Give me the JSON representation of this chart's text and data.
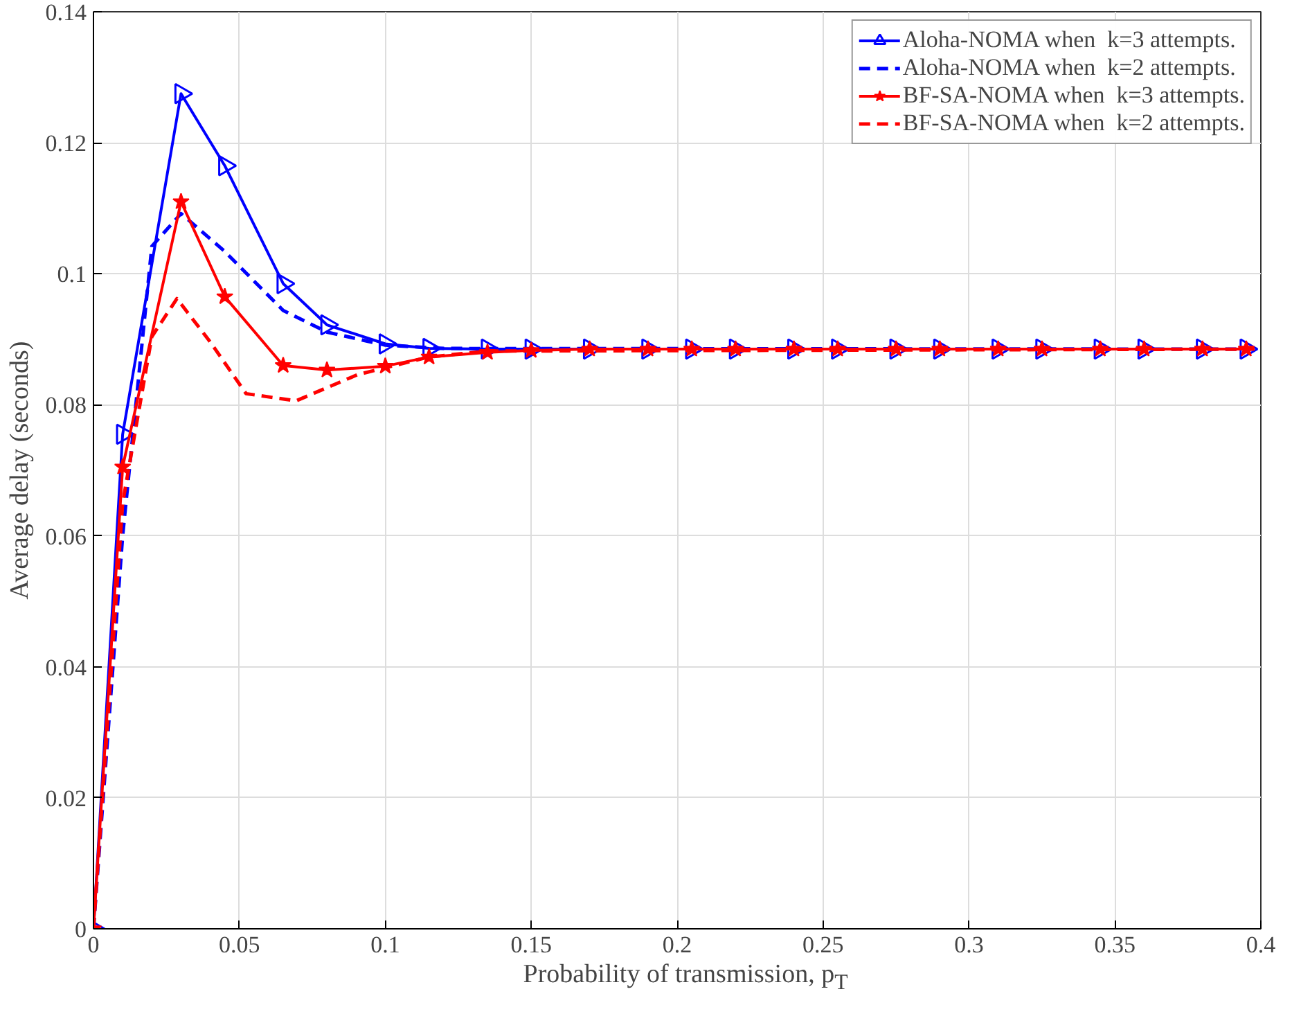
{
  "chart_data": {
    "type": "line",
    "xlabel": "Probability of transmission, p$_{T}$",
    "ylabel": "Average delay (seconds)",
    "xlim": [
      0,
      0.4
    ],
    "xticks": [
      0,
      0.05,
      0.1,
      0.15,
      0.2,
      0.25,
      0.3,
      0.35,
      0.4
    ],
    "ylim": [
      0,
      0.14
    ],
    "yticks": [
      0,
      0.02,
      0.04,
      0.06,
      0.08,
      0.1,
      0.12,
      0.14
    ],
    "grid": true,
    "legend": "top right",
    "series": [
      {
        "name": "Aloha-NOMA when  k=3 attempts.",
        "color": "#0000ff",
        "marker": "triangle",
        "line_style": "solid",
        "x": [
          0,
          0.01,
          0.03,
          0.045,
          0.065,
          0.08,
          0.1,
          0.115,
          0.135,
          0.15,
          0.17,
          0.19,
          0.205,
          0.22,
          0.24,
          0.255,
          0.275,
          0.29,
          0.31,
          0.325,
          0.345,
          0.36,
          0.38,
          0.395
        ],
        "values": [
          0,
          0.0755,
          0.1275,
          0.1165,
          0.0985,
          0.0922,
          0.0893,
          0.0886,
          0.0885,
          0.0885,
          0.0885,
          0.0885,
          0.0885,
          0.0885,
          0.0885,
          0.0885,
          0.0885,
          0.0885,
          0.0885,
          0.0885,
          0.0885,
          0.0885,
          0.0885,
          0.0885
        ]
      },
      {
        "name": "Aloha-NOMA when  k=2 attempts.",
        "color": "#0000ff",
        "marker": "none",
        "line_style": "dashed",
        "x": [
          0,
          0.01,
          0.02,
          0.03,
          0.045,
          0.065,
          0.08,
          0.1,
          0.12,
          0.4
        ],
        "values": [
          0,
          0.06,
          0.1042,
          0.1092,
          0.1034,
          0.0944,
          0.0911,
          0.0891,
          0.0886,
          0.0885
        ]
      },
      {
        "name": "BF-SA-NOMA when  k=3 attempts.",
        "color": "#ff0000",
        "marker": "star",
        "line_style": "solid",
        "x": [
          0,
          0.01,
          0.03,
          0.045,
          0.065,
          0.08,
          0.1,
          0.115,
          0.135,
          0.15,
          0.17,
          0.19,
          0.205,
          0.22,
          0.24,
          0.255,
          0.275,
          0.29,
          0.31,
          0.325,
          0.345,
          0.36,
          0.38,
          0.395
        ],
        "values": [
          0,
          0.0705,
          0.111,
          0.0965,
          0.086,
          0.0853,
          0.0859,
          0.0873,
          0.088,
          0.0883,
          0.0885,
          0.0885,
          0.0885,
          0.0885,
          0.0885,
          0.0885,
          0.0885,
          0.0885,
          0.0885,
          0.0885,
          0.0885,
          0.0885,
          0.0885,
          0.0885
        ]
      },
      {
        "name": "BF-SA-NOMA when  k=2 attempts.",
        "color": "#ff0000",
        "marker": "none",
        "line_style": "dashed",
        "x": [
          0,
          0.01,
          0.02,
          0.0286,
          0.04,
          0.0523,
          0.0694,
          0.0905,
          0.115,
          0.135,
          0.4
        ],
        "values": [
          0,
          0.065,
          0.0904,
          0.0962,
          0.0896,
          0.0817,
          0.0806,
          0.0846,
          0.0873,
          0.0882,
          0.0885
        ]
      }
    ]
  }
}
